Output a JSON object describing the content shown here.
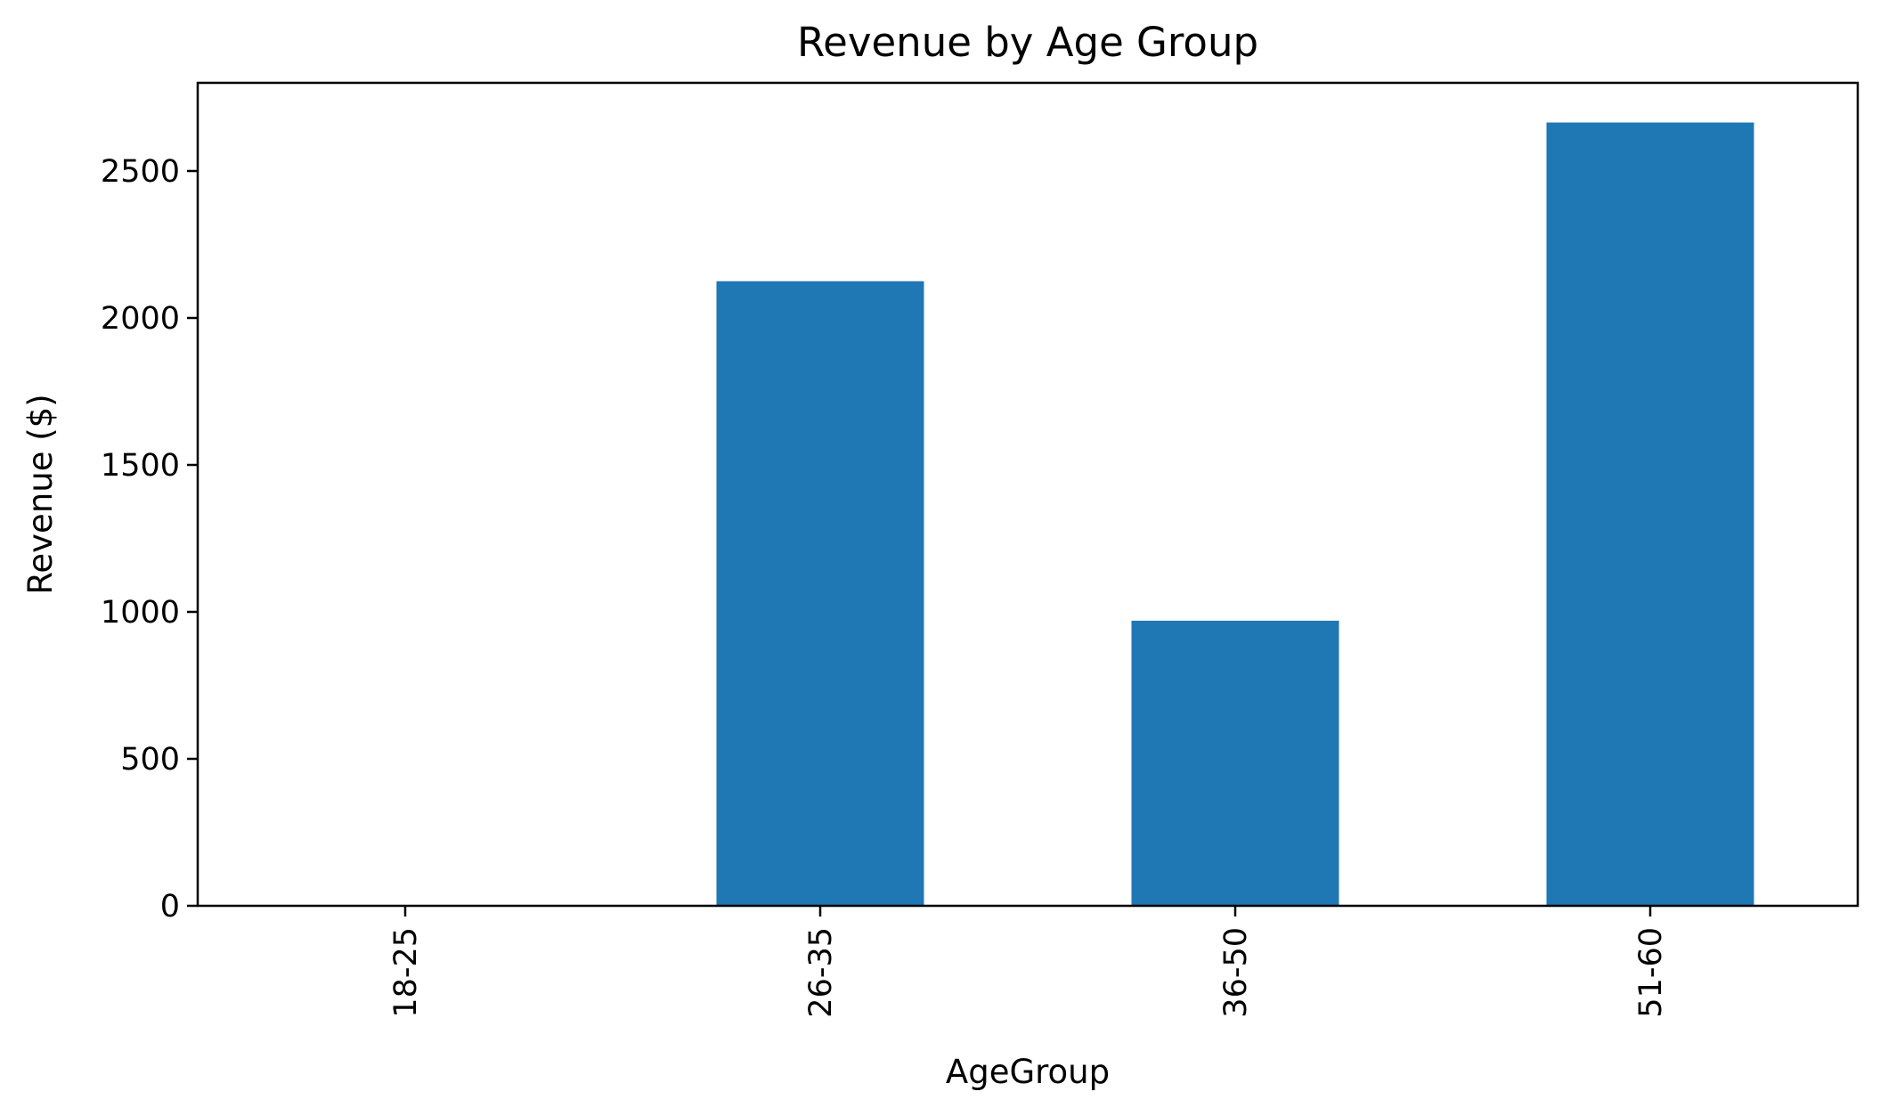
{
  "chart_data": {
    "type": "bar",
    "title": "Revenue by Age Group",
    "xlabel": "AgeGroup",
    "ylabel": "Revenue ($)",
    "categories": [
      "18-25",
      "26-35",
      "36-50",
      "51-60"
    ],
    "values": [
      0,
      2125,
      970,
      2665
    ],
    "ylim": [
      0,
      2800
    ],
    "yticks": [
      0,
      500,
      1000,
      1500,
      2000,
      2500
    ],
    "ytick_labels": [
      "0",
      "500",
      "1000",
      "1500",
      "2000",
      "2500"
    ],
    "xtick_rotation": "vertical",
    "grid": false,
    "legend": false,
    "colors": {
      "bar": "#1f77b4"
    }
  }
}
